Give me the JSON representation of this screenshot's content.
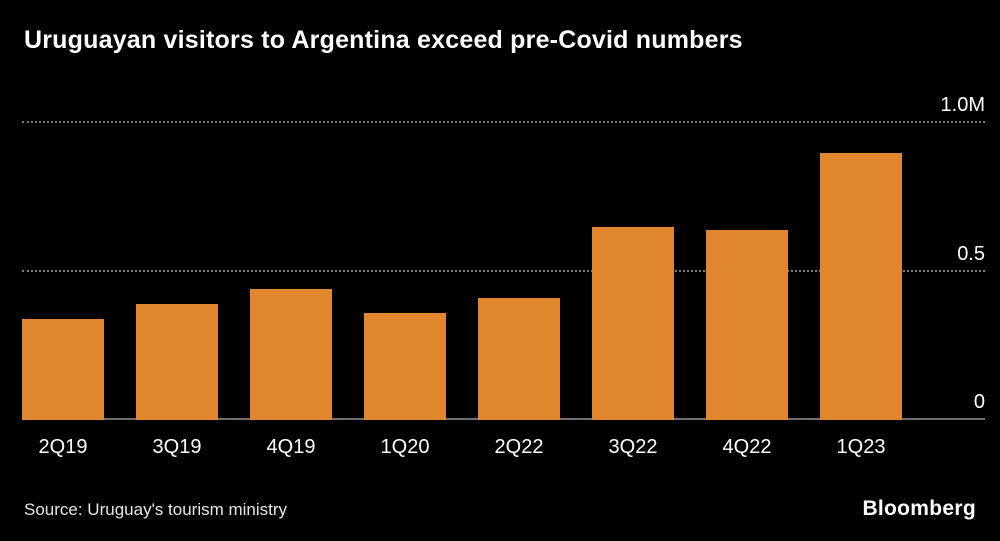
{
  "title": "Uruguayan visitors to Argentina exceed pre-Covid numbers",
  "source": "Source: Uruguay's tourism ministry",
  "brand": "Bloomberg",
  "colors": {
    "background": "#000000",
    "bar": "#E0862D",
    "grid": "#7A7A7A",
    "text": "#FFFFFF"
  },
  "chart_data": {
    "type": "bar",
    "title": "Uruguayan visitors to Argentina exceed pre-Covid numbers",
    "categories": [
      "2Q19",
      "3Q19",
      "4Q19",
      "1Q20",
      "2Q22",
      "3Q22",
      "4Q22",
      "1Q23"
    ],
    "values": [
      0.34,
      0.39,
      0.44,
      0.36,
      0.41,
      0.65,
      0.64,
      0.9
    ],
    "unit": "millions of visitors",
    "xlabel": "",
    "ylabel": "",
    "ylim": [
      0,
      1.0
    ],
    "yticks": [
      {
        "value": 1.0,
        "label": "1.0M"
      },
      {
        "value": 0.5,
        "label": "0.5"
      },
      {
        "value": 0.0,
        "label": "0"
      }
    ],
    "grid": "horizontal-dotted",
    "legend": "none"
  }
}
